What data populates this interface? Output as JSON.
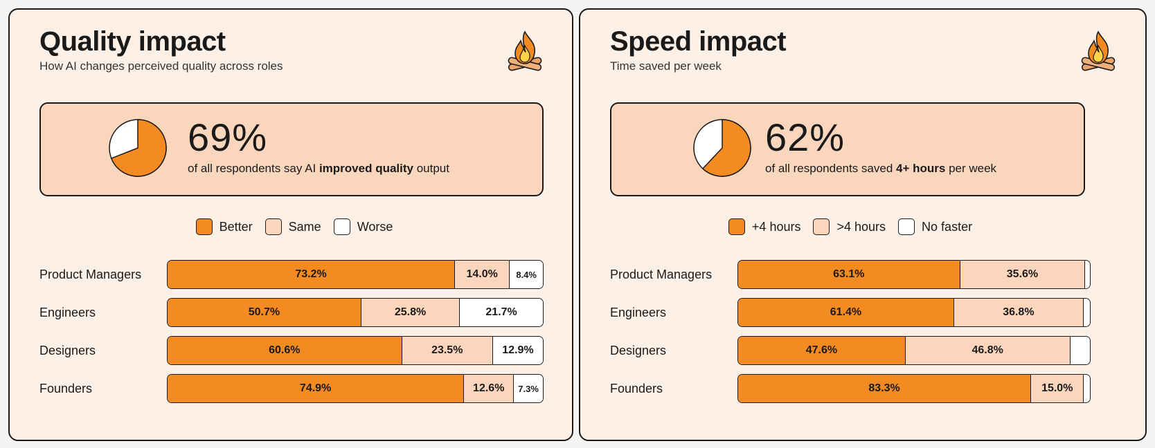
{
  "colors": {
    "better": "#f48a22",
    "same": "#fbd6bc",
    "worse": "#ffffff",
    "panel": "#fdf1e7",
    "summary": "#fad6bd",
    "outline": "#1a1a1a"
  },
  "panels": [
    {
      "title": "Quality impact",
      "subtitle": "How AI changes perceived quality across roles",
      "logo_icon": "campfire-icon",
      "summary": {
        "percent": "69%",
        "pie_fraction": 0.69,
        "text_before": "of all respondents say AI ",
        "text_bold": "improved quality",
        "text_after": " output"
      },
      "legend": [
        "Better",
        "Same",
        "Worse"
      ]
    },
    {
      "title": "Speed impact",
      "subtitle": "Time saved per week",
      "logo_icon": "campfire-icon",
      "summary": {
        "percent": "62%",
        "pie_fraction": 0.62,
        "text_before": "of all respondents saved ",
        "text_bold": "4+ hours",
        "text_after": " per week"
      },
      "legend": [
        "+4 hours",
        ">4 hours",
        "No faster"
      ]
    }
  ],
  "chart_data": [
    {
      "type": "bar",
      "orientation": "horizontal",
      "stacked": true,
      "title": "Quality impact",
      "categories": [
        "Product Managers",
        "Engineers",
        "Designers",
        "Founders"
      ],
      "series": [
        {
          "name": "Better",
          "values": [
            73.2,
            50.7,
            60.6,
            74.9
          ],
          "labels": [
            "73.2%",
            "50.7%",
            "60.6%",
            "74.9%"
          ]
        },
        {
          "name": "Same",
          "values": [
            14.0,
            25.8,
            23.5,
            12.6
          ],
          "labels": [
            "14.0%",
            "25.8%",
            "23.5%",
            "12.6%"
          ]
        },
        {
          "name": "Worse",
          "values": [
            8.4,
            21.7,
            12.9,
            7.3
          ],
          "labels": [
            "8.4%",
            "21.7%",
            "12.9%",
            "7.3%"
          ]
        }
      ],
      "xlim": [
        0,
        100
      ]
    },
    {
      "type": "bar",
      "orientation": "horizontal",
      "stacked": true,
      "title": "Speed impact",
      "categories": [
        "Product Managers",
        "Engineers",
        "Designers",
        "Founders"
      ],
      "series": [
        {
          "name": "+4 hours",
          "values": [
            63.1,
            61.4,
            47.6,
            83.3
          ],
          "labels": [
            "63.1%",
            "61.4%",
            "47.6%",
            "83.3%"
          ]
        },
        {
          "name": ">4 hours",
          "values": [
            35.6,
            36.8,
            46.8,
            15.0
          ],
          "labels": [
            "35.6%",
            "36.8%",
            "46.8%",
            "15.0%"
          ]
        },
        {
          "name": "No faster",
          "values": [
            1.3,
            1.8,
            5.6,
            1.7
          ],
          "labels": [
            "",
            "",
            "",
            ""
          ]
        }
      ],
      "xlim": [
        0,
        100
      ]
    }
  ]
}
